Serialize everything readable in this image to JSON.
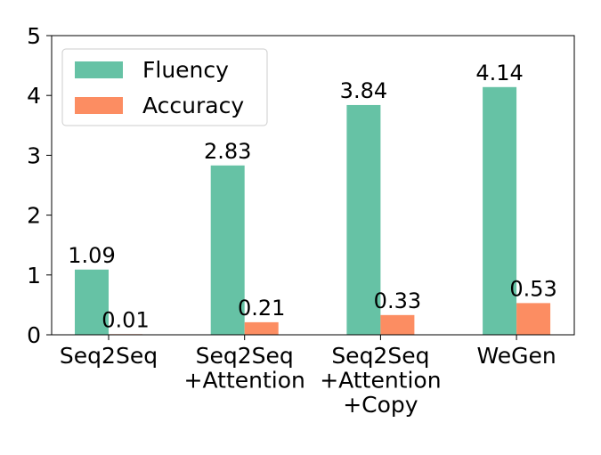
{
  "chart_data": {
    "type": "bar",
    "categories": [
      "Seq2Seq",
      "Seq2Seq\n+Attention",
      "Seq2Seq\n+Attention\n+Copy",
      "WeGen"
    ],
    "series": [
      {
        "name": "Fluency",
        "color": "#66c2a5",
        "values": [
          1.09,
          2.83,
          3.84,
          4.14
        ]
      },
      {
        "name": "Accuracy",
        "color": "#fc8d62",
        "values": [
          0.01,
          0.21,
          0.33,
          0.53
        ]
      }
    ],
    "ylim": [
      0,
      5
    ],
    "yticks": [
      0,
      1,
      2,
      3,
      4,
      5
    ],
    "legend": "upper left"
  }
}
